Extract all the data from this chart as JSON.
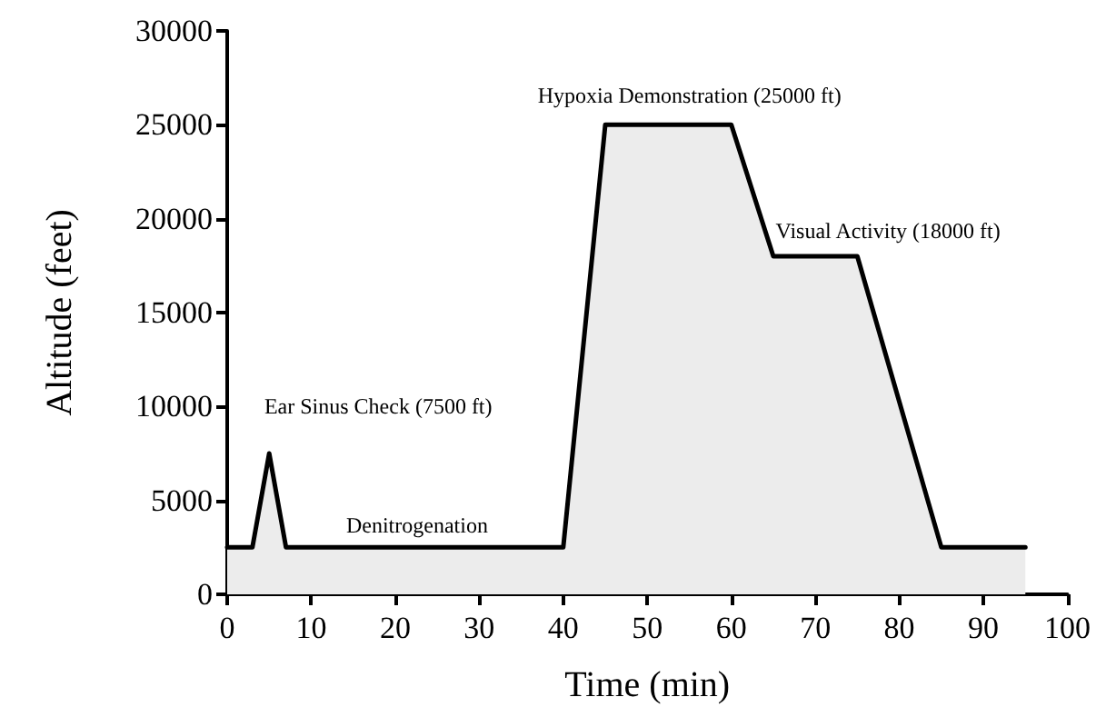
{
  "chart_data": {
    "type": "area",
    "xlabel": "Time (min)",
    "ylabel": "Altitude (feet)",
    "x": [
      0,
      3,
      5,
      7,
      40,
      45,
      60,
      65,
      75,
      85,
      95
    ],
    "series": [
      {
        "color": "#000000",
        "values": [
          2500,
          2500,
          7500,
          2500,
          2500,
          25000,
          25000,
          18000,
          18000,
          2500,
          2500
        ]
      }
    ],
    "xlim": [
      0,
      100
    ],
    "xticks": [
      0,
      10,
      20,
      30,
      40,
      50,
      60,
      70,
      80,
      90,
      100
    ],
    "ylim": [
      0,
      30000
    ],
    "yticks": [
      0,
      5000,
      10000,
      15000,
      20000,
      25000,
      30000
    ],
    "grid": false,
    "marker": "none",
    "line_style": "solid",
    "annotations": [
      {
        "text": "Ear Sinus Check (7500 ft)",
        "x": 5,
        "y": 7500
      },
      {
        "text": "Denitrogenation",
        "x": 20,
        "y": 2500
      },
      {
        "text": "Hypoxia Demonstration (25000 ft)",
        "x": 52,
        "y": 25000
      },
      {
        "text": "Visual Activity (18000 ft)",
        "x": 70,
        "y": 18000
      }
    ]
  }
}
